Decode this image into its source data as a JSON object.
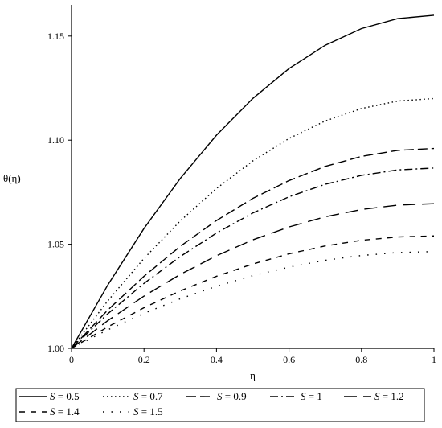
{
  "chart_data": {
    "type": "line",
    "xlabel": "η",
    "ylabel": "θ(η)",
    "xlim": [
      0,
      1
    ],
    "ylim": [
      1.0,
      1.165
    ],
    "xticks": [
      "0",
      "0.2",
      "0.4",
      "0.6",
      "0.8",
      "1"
    ],
    "yticks": [
      "1.00",
      "1.05",
      "1.10",
      "1.15"
    ],
    "grid": false,
    "legend_position": "bottom",
    "x": [
      0,
      0.1,
      0.2,
      0.3,
      0.4,
      0.5,
      0.6,
      0.7,
      0.8,
      0.9,
      1.0
    ],
    "series": [
      {
        "name": "S = 0.5",
        "var": "S",
        "val": "0.5",
        "dash": "solid",
        "values": [
          1.0,
          1.0304,
          1.0576,
          1.0816,
          1.1024,
          1.12,
          1.1344,
          1.1456,
          1.1536,
          1.1584,
          1.16
        ]
      },
      {
        "name": "S = 0.7",
        "var": "S",
        "val": "0.7",
        "dash": "dot",
        "values": [
          1.0,
          1.0228,
          1.0432,
          1.0612,
          1.0768,
          1.09,
          1.1008,
          1.1092,
          1.1152,
          1.1188,
          1.12
        ]
      },
      {
        "name": "S = 0.9",
        "var": "S",
        "val": "0.9",
        "dash": "longdash",
        "values": [
          1.0,
          1.0184,
          1.0346,
          1.049,
          1.0614,
          1.072,
          1.0806,
          1.0874,
          1.0922,
          1.0951,
          1.096
        ]
      },
      {
        "name": "S = 1",
        "var": "S",
        "val": "1",
        "dash": "dashdot",
        "values": [
          1.0,
          1.0166,
          1.0312,
          1.0441,
          1.0554,
          1.065,
          1.0728,
          1.0788,
          1.0831,
          1.0857,
          1.0866
        ]
      },
      {
        "name": "S = 1.2",
        "var": "S",
        "val": "1.2",
        "dash": "longdashgap",
        "values": [
          1.0,
          1.0133,
          1.0251,
          1.0355,
          1.0445,
          1.0521,
          1.0583,
          1.0632,
          1.0667,
          1.0688,
          1.0695
        ]
      },
      {
        "name": "S = 1.4",
        "var": "S",
        "val": "1.4",
        "dash": "dash",
        "values": [
          1.0,
          1.0103,
          1.0195,
          1.0276,
          1.0346,
          1.0405,
          1.0454,
          1.0492,
          1.0519,
          1.0535,
          1.054
        ]
      },
      {
        "name": "S = 1.5",
        "var": "S",
        "val": "1.5",
        "dash": "sparsedot",
        "values": [
          1.0,
          1.0089,
          1.0168,
          1.0238,
          1.0298,
          1.0349,
          1.039,
          1.0423,
          1.0446,
          1.046,
          1.0465
        ]
      }
    ]
  }
}
